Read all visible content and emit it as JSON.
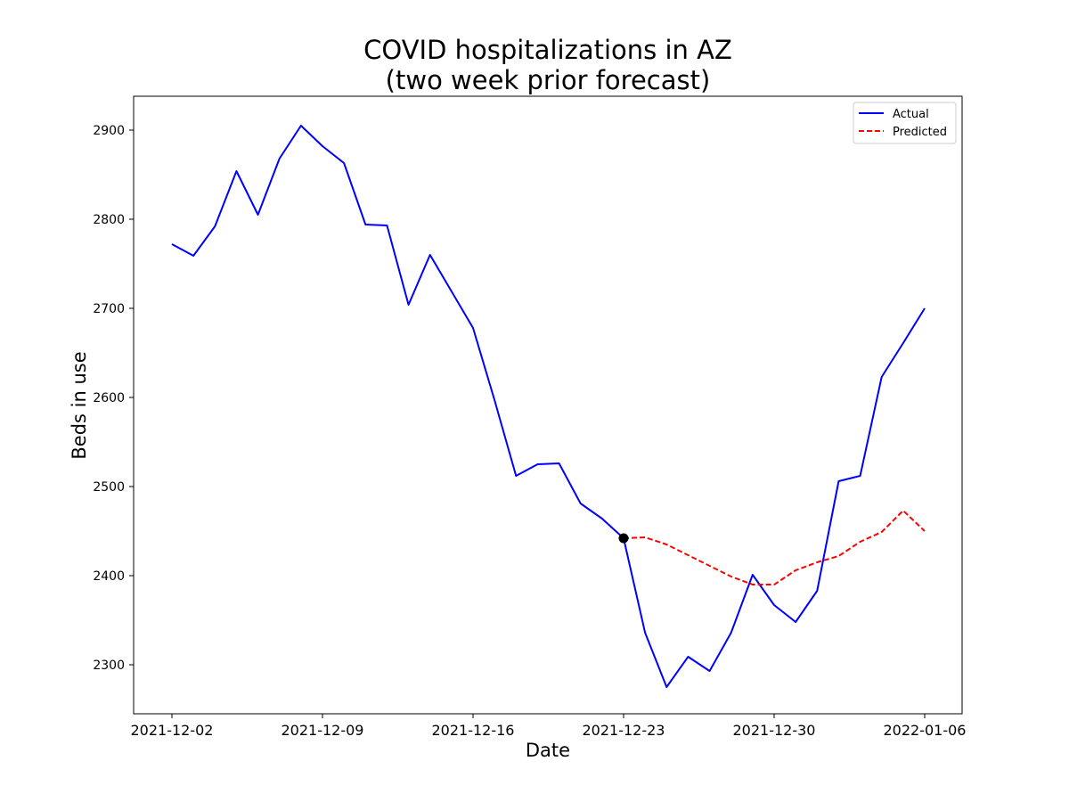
{
  "chart_data": {
    "type": "line",
    "title": [
      "COVID hospitalizations in AZ",
      "(two week prior forecast)"
    ],
    "xlabel": "Date",
    "ylabel": "Beds in use",
    "x_range": [
      "2021-12-02",
      "2022-01-06"
    ],
    "ylim": [
      2245,
      2938
    ],
    "x_ticks": [
      "2021-12-02",
      "2021-12-09",
      "2021-12-16",
      "2021-12-23",
      "2021-12-30",
      "2022-01-06"
    ],
    "y_ticks": [
      2300,
      2400,
      2500,
      2600,
      2700,
      2800,
      2900
    ],
    "grid": false,
    "legend_position": "top-right",
    "series": [
      {
        "name": "Actual",
        "color": "#0000ff",
        "style": "solid",
        "points": [
          [
            "2021-12-02",
            2772
          ],
          [
            "2021-12-03",
            2759
          ],
          [
            "2021-12-04",
            2792
          ],
          [
            "2021-12-05",
            2854
          ],
          [
            "2021-12-06",
            2805
          ],
          [
            "2021-12-07",
            2868
          ],
          [
            "2021-12-08",
            2905
          ],
          [
            "2021-12-09",
            2882
          ],
          [
            "2021-12-10",
            2863
          ],
          [
            "2021-12-11",
            2794
          ],
          [
            "2021-12-12",
            2793
          ],
          [
            "2021-12-13",
            2704
          ],
          [
            "2021-12-14",
            2760
          ],
          [
            "2021-12-15",
            2719
          ],
          [
            "2021-12-16",
            2678
          ],
          [
            "2021-12-17",
            2597
          ],
          [
            "2021-12-18",
            2512
          ],
          [
            "2021-12-19",
            2525
          ],
          [
            "2021-12-20",
            2526
          ],
          [
            "2021-12-21",
            2481
          ],
          [
            "2021-12-22",
            2464
          ],
          [
            "2021-12-23",
            2442
          ],
          [
            "2021-12-24",
            2336
          ],
          [
            "2021-12-25",
            2275
          ],
          [
            "2021-12-26",
            2309
          ],
          [
            "2021-12-27",
            2293
          ],
          [
            "2021-12-28",
            2336
          ],
          [
            "2021-12-29",
            2401
          ],
          [
            "2021-12-30",
            2367
          ],
          [
            "2021-12-31",
            2348
          ],
          [
            "2022-01-01",
            2383
          ],
          [
            "2022-01-02",
            2506
          ],
          [
            "2022-01-03",
            2512
          ],
          [
            "2022-01-04",
            2623
          ],
          [
            "2022-01-05",
            2661
          ],
          [
            "2022-01-06",
            2700
          ]
        ]
      },
      {
        "name": "Predicted",
        "color": "#ff0000",
        "style": "dashed",
        "points": [
          [
            "2021-12-23",
            2442
          ],
          [
            "2021-12-24",
            2443
          ],
          [
            "2021-12-25",
            2435
          ],
          [
            "2021-12-26",
            2423
          ],
          [
            "2021-12-27",
            2411
          ],
          [
            "2021-12-28",
            2399
          ],
          [
            "2021-12-29",
            2390
          ],
          [
            "2021-12-30",
            2390
          ],
          [
            "2021-12-31",
            2406
          ],
          [
            "2022-01-01",
            2415
          ],
          [
            "2022-01-02",
            2422
          ],
          [
            "2022-01-03",
            2438
          ],
          [
            "2022-01-04",
            2449
          ],
          [
            "2022-01-05",
            2473
          ],
          [
            "2022-01-06",
            2450
          ]
        ]
      }
    ],
    "markers": [
      {
        "x": "2021-12-23",
        "y": 2442,
        "color": "#000000"
      }
    ]
  }
}
